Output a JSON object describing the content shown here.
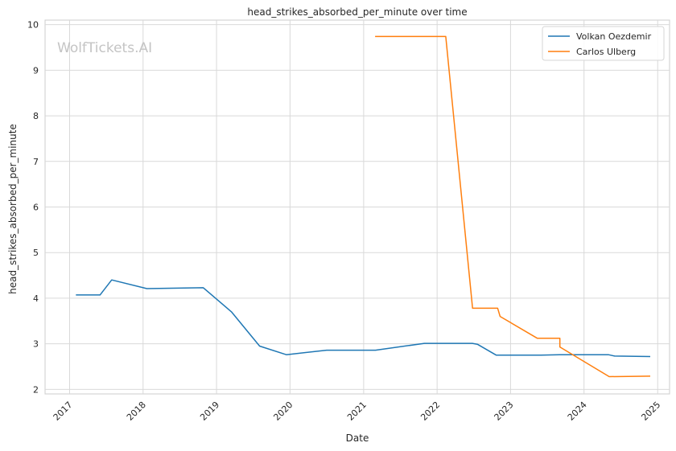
{
  "watermark": "WolfTickets.AI",
  "chart_data": {
    "type": "line",
    "title": "head_strikes_absorbed_per_minute over time",
    "xlabel": "Date",
    "ylabel": "head_strikes_absorbed_per_minute",
    "x_ticks": [
      "2017",
      "2018",
      "2019",
      "2020",
      "2021",
      "2022",
      "2023",
      "2024",
      "2025"
    ],
    "y_ticks": [
      "2",
      "3",
      "4",
      "5",
      "6",
      "7",
      "8",
      "9",
      "10"
    ],
    "xlim": [
      "2016-09-01",
      "2025-03-01"
    ],
    "ylim": [
      1.9,
      10.1
    ],
    "grid": true,
    "legend_position": "top-right",
    "colors": {
      "Volkan Oezdemir": "#1f77b4",
      "Carlos Ulberg": "#ff7f0e"
    },
    "series": [
      {
        "name": "Volkan Oezdemir",
        "points": [
          [
            "2017-02-01",
            4.07
          ],
          [
            "2017-06-01",
            4.07
          ],
          [
            "2017-07-29",
            4.4
          ],
          [
            "2018-01-20",
            4.21
          ],
          [
            "2018-10-27",
            4.23
          ],
          [
            "2019-03-16",
            3.7
          ],
          [
            "2019-08-03",
            2.95
          ],
          [
            "2019-12-14",
            2.76
          ],
          [
            "2020-07-01",
            2.86
          ],
          [
            "2021-03-01",
            2.86
          ],
          [
            "2021-10-30",
            3.01
          ],
          [
            "2022-06-25",
            3.01
          ],
          [
            "2022-07-20",
            2.99
          ],
          [
            "2022-10-22",
            2.75
          ],
          [
            "2023-06-01",
            2.75
          ],
          [
            "2023-09-01",
            2.76
          ],
          [
            "2024-05-01",
            2.76
          ],
          [
            "2024-06-01",
            2.73
          ],
          [
            "2024-11-25",
            2.72
          ]
        ]
      },
      {
        "name": "Carlos Ulberg",
        "points": [
          [
            "2021-02-27",
            9.74
          ],
          [
            "2022-02-13",
            9.74
          ],
          [
            "2022-06-26",
            3.78
          ],
          [
            "2022-10-29",
            3.78
          ],
          [
            "2022-11-10",
            3.6
          ],
          [
            "2023-05-14",
            3.12
          ],
          [
            "2023-09-03",
            3.12
          ],
          [
            "2023-09-03",
            2.93
          ],
          [
            "2024-05-05",
            2.28
          ],
          [
            "2024-11-25",
            2.29
          ]
        ]
      }
    ]
  }
}
